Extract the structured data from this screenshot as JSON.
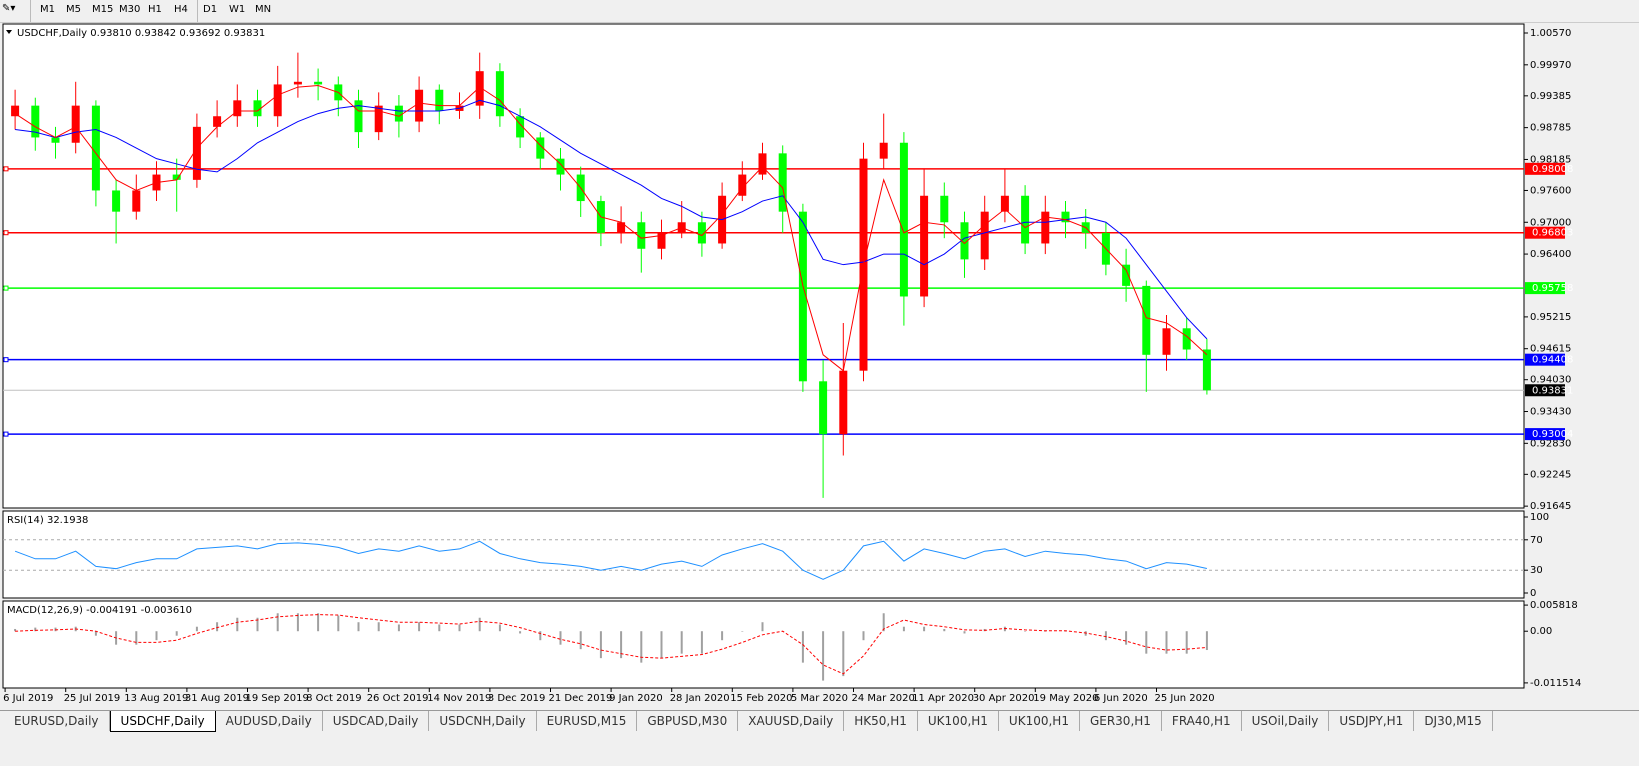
{
  "toolbar": {
    "timeframes": [
      "M1",
      "M5",
      "M15",
      "M30",
      "H1",
      "H4",
      "D1",
      "W1",
      "MN"
    ]
  },
  "tabs": [
    "EURUSD,Daily",
    "USDCHF,Daily",
    "AUDUSD,Daily",
    "USDCAD,Daily",
    "USDCNH,Daily",
    "EURUSD,M15",
    "GBPUSD,M30",
    "XAUUSD,Daily",
    "HK50,H1",
    "UK100,H1",
    "UK100,H1",
    "GER30,H1",
    "FRA40,H1",
    "USOil,Daily",
    "USDJPY,H1",
    "DJ30,M15"
  ],
  "active_tab": 1,
  "chart_data": [
    {
      "type": "candlestick",
      "title": "USDCHF,Daily  0.93810 0.93842 0.93692 0.93831",
      "up_color": "#ff0000",
      "down_color": "#00ff00",
      "categories": [
        "6 Jul 2019",
        null,
        null,
        "25 Jul 2019",
        null,
        null,
        "13 Aug 2019",
        null,
        null,
        "31 Aug 2019",
        null,
        null,
        "19 Sep 2019",
        null,
        null,
        "8 Oct 2019",
        null,
        null,
        "26 Oct 2019",
        null,
        null,
        "14 Nov 2019",
        null,
        null,
        "3 Dec 2019",
        null,
        null,
        "21 Dec 2019",
        null,
        null,
        "9 Jan 2020",
        null,
        null,
        "28 Jan 2020",
        null,
        null,
        "15 Feb 2020",
        null,
        null,
        "5 Mar 2020",
        null,
        null,
        "24 Mar 2020",
        null,
        null,
        "11 Apr 2020",
        null,
        null,
        "30 Apr 2020",
        null,
        null,
        "19 May 2020",
        null,
        null,
        "6 Jun 2020",
        null,
        null,
        "25 Jun 2020",
        null,
        null
      ],
      "open": [
        0.99,
        0.992,
        0.986,
        0.985,
        0.992,
        0.976,
        0.972,
        0.976,
        0.979,
        0.978,
        0.988,
        0.99,
        0.993,
        0.99,
        0.996,
        0.9965,
        0.996,
        0.993,
        0.987,
        0.992,
        0.989,
        0.995,
        0.991,
        0.992,
        0.9985,
        0.99,
        0.986,
        0.982,
        0.979,
        0.974,
        0.968,
        0.97,
        0.965,
        0.968,
        0.97,
        0.966,
        0.975,
        0.979,
        0.983,
        0.972,
        0.94,
        0.93,
        0.942,
        0.982,
        0.985,
        0.956,
        0.975,
        0.97,
        0.963,
        0.972,
        0.975,
        0.966,
        0.972,
        0.97,
        0.968,
        0.962,
        0.958,
        0.945,
        0.95,
        0.946
      ],
      "high": [
        0.995,
        0.9935,
        0.988,
        0.9965,
        0.993,
        0.978,
        0.979,
        0.9815,
        0.982,
        0.9905,
        0.993,
        0.996,
        0.995,
        0.9995,
        1.002,
        0.999,
        0.9975,
        0.995,
        0.9945,
        0.994,
        0.9975,
        0.996,
        0.9945,
        1.002,
        1.0,
        0.9915,
        0.987,
        0.984,
        0.9805,
        0.975,
        0.973,
        0.972,
        0.9705,
        0.974,
        0.972,
        0.9775,
        0.9815,
        0.985,
        0.9845,
        0.9735,
        0.944,
        0.951,
        0.985,
        0.9905,
        0.987,
        0.98,
        0.9775,
        0.972,
        0.975,
        0.98,
        0.977,
        0.975,
        0.974,
        0.9725,
        0.97,
        0.965,
        0.959,
        0.9525,
        0.952,
        0.948
      ],
      "low": [
        0.9875,
        0.9835,
        0.982,
        0.983,
        0.973,
        0.966,
        0.9705,
        0.974,
        0.972,
        0.9765,
        0.986,
        0.988,
        0.988,
        0.988,
        0.9935,
        0.993,
        0.99,
        0.984,
        0.9855,
        0.986,
        0.987,
        0.9885,
        0.9895,
        0.9895,
        0.988,
        0.984,
        0.98,
        0.976,
        0.971,
        0.9655,
        0.966,
        0.9605,
        0.963,
        0.967,
        0.9635,
        0.965,
        0.974,
        0.978,
        0.968,
        0.938,
        0.918,
        0.926,
        0.94,
        0.98,
        0.9505,
        0.954,
        0.967,
        0.9595,
        0.961,
        0.97,
        0.964,
        0.964,
        0.967,
        0.965,
        0.96,
        0.955,
        0.938,
        0.942,
        0.944,
        0.9375
      ],
      "close": [
        0.992,
        0.986,
        0.985,
        0.992,
        0.976,
        0.972,
        0.976,
        0.979,
        0.978,
        0.988,
        0.99,
        0.993,
        0.99,
        0.996,
        0.9965,
        0.996,
        0.993,
        0.987,
        0.992,
        0.989,
        0.995,
        0.991,
        0.992,
        0.9985,
        0.99,
        0.986,
        0.982,
        0.979,
        0.974,
        0.968,
        0.97,
        0.965,
        0.968,
        0.97,
        0.966,
        0.975,
        0.979,
        0.983,
        0.972,
        0.94,
        0.93,
        0.942,
        0.982,
        0.985,
        0.956,
        0.975,
        0.97,
        0.963,
        0.972,
        0.975,
        0.966,
        0.972,
        0.97,
        0.968,
        0.962,
        0.958,
        0.945,
        0.95,
        0.946,
        0.93831
      ],
      "series": [
        {
          "color": "#0000ff",
          "values": [
            0.9875,
            0.987,
            0.986,
            0.987,
            0.9875,
            0.986,
            0.984,
            0.982,
            0.981,
            0.98,
            0.9795,
            0.982,
            0.985,
            0.987,
            0.989,
            0.9905,
            0.9915,
            0.992,
            0.9915,
            0.991,
            0.991,
            0.991,
            0.9915,
            0.993,
            0.992,
            0.99,
            0.988,
            0.9855,
            0.983,
            0.981,
            0.979,
            0.977,
            0.9745,
            0.973,
            0.971,
            0.9705,
            0.972,
            0.974,
            0.975,
            0.97,
            0.963,
            0.962,
            0.9625,
            0.964,
            0.964,
            0.962,
            0.964,
            0.967,
            0.968,
            0.969,
            0.97,
            0.97,
            0.9705,
            0.971,
            0.97,
            0.967,
            0.962,
            0.957,
            0.952,
            0.948
          ]
        },
        {
          "color": "#ff0000",
          "values": [
            0.9905,
            0.988,
            0.986,
            0.988,
            0.983,
            0.978,
            0.976,
            0.9775,
            0.978,
            0.984,
            0.988,
            0.991,
            0.991,
            0.994,
            0.9955,
            0.9958,
            0.9945,
            0.991,
            0.991,
            0.99,
            0.9925,
            0.992,
            0.992,
            0.9955,
            0.993,
            0.9885,
            0.9845,
            0.981,
            0.9765,
            0.971,
            0.97,
            0.967,
            0.9675,
            0.969,
            0.9675,
            0.9715,
            0.9765,
            0.9805,
            0.9765,
            0.958,
            0.945,
            0.942,
            0.962,
            0.978,
            0.968,
            0.97,
            0.9695,
            0.966,
            0.9695,
            0.9725,
            0.969,
            0.971,
            0.9705,
            0.969,
            0.965,
            0.961,
            0.952,
            0.951,
            0.9485,
            0.945
          ]
        }
      ],
      "ylim": [
        0.9161,
        1.0074
      ],
      "yticks": [
        {
          "value": 1.0057,
          "label": "1.00570"
        },
        {
          "value": 0.9997,
          "label": "0.99970"
        },
        0.99385,
        0.98785,
        0.98185,
        {
          "value": 0.976,
          "label": "0.97600"
        },
        {
          "value": 0.97,
          "label": "0.97000"
        },
        {
          "value": 0.964,
          "label": "0.96400"
        },
        0.95215,
        0.94615,
        {
          "value": 0.9403,
          "label": "0.94030"
        },
        {
          "value": 0.9343,
          "label": "0.93430"
        },
        {
          "value": 0.9283,
          "label": "0.92830"
        },
        0.92245,
        0.91645
      ],
      "levels": [
        {
          "value": 0.98008,
          "color": "#ff0000"
        },
        {
          "value": 0.96803,
          "color": "#ff0000"
        },
        {
          "value": 0.95758,
          "color": "#00ff00"
        },
        {
          "value": 0.94408,
          "color": "#0000ff"
        },
        {
          "value": 0.93004,
          "color": "#0000ff"
        }
      ],
      "current": 0.93831
    },
    {
      "type": "line",
      "title": "RSI(14) 32.1938",
      "color": "#1e90ff",
      "values": [
        55,
        45,
        45,
        55,
        35,
        32,
        40,
        45,
        45,
        58,
        60,
        62,
        58,
        65,
        66,
        64,
        60,
        52,
        58,
        55,
        62,
        55,
        58,
        68,
        52,
        45,
        40,
        38,
        35,
        30,
        35,
        30,
        38,
        42,
        35,
        50,
        58,
        65,
        55,
        30,
        18,
        30,
        62,
        68,
        42,
        58,
        52,
        45,
        55,
        58,
        48,
        55,
        52,
        50,
        45,
        42,
        32,
        40,
        38,
        32.1938
      ],
      "ylim": [
        0,
        100
      ],
      "yticks": [
        100,
        70,
        30,
        0
      ],
      "levels": [
        70,
        30
      ]
    },
    {
      "type": "macd",
      "title": "MACD(12,26,9) -0.004191 -0.003610",
      "histogram": {
        "color": "#a0a0a0",
        "values": [
          0.0005,
          0.0008,
          0.0008,
          0.001,
          -0.001,
          -0.003,
          -0.003,
          -0.002,
          -0.001,
          0.001,
          0.002,
          0.003,
          0.003,
          0.004,
          0.004,
          0.004,
          0.0035,
          0.002,
          0.002,
          0.0015,
          0.002,
          0.0015,
          0.0015,
          0.003,
          0.0015,
          -0.0005,
          -0.002,
          -0.003,
          -0.004,
          -0.006,
          -0.006,
          -0.007,
          -0.006,
          -0.005,
          -0.005,
          -0.002,
          0,
          0.002,
          0,
          -0.007,
          -0.011,
          -0.01,
          -0.002,
          0.004,
          0.001,
          0.001,
          0.0005,
          -0.0005,
          0.0005,
          0.001,
          0,
          0,
          0,
          -0.001,
          -0.002,
          -0.003,
          -0.005,
          -0.005,
          -0.005,
          -0.004191
        ]
      },
      "signal": {
        "color": "#ff0000",
        "values": [
          0,
          0.0002,
          0.0003,
          0.0005,
          0,
          -0.0015,
          -0.0025,
          -0.0025,
          -0.002,
          -0.0005,
          0.0008,
          0.002,
          0.0025,
          0.0032,
          0.0035,
          0.0037,
          0.0036,
          0.003,
          0.0025,
          0.002,
          0.002,
          0.0018,
          0.0016,
          0.0022,
          0.0018,
          0.0008,
          -0.0005,
          -0.0018,
          -0.0028,
          -0.0042,
          -0.005,
          -0.0058,
          -0.006,
          -0.0056,
          -0.0052,
          -0.004,
          -0.0025,
          -0.0008,
          0,
          -0.003,
          -0.0075,
          -0.0095,
          -0.0055,
          0.0005,
          0.0025,
          0.0015,
          0.001,
          0.0003,
          0.0002,
          0.0006,
          0.0003,
          0.0001,
          0.0001,
          -0.0004,
          -0.0012,
          -0.0022,
          -0.0035,
          -0.0042,
          -0.004,
          -0.00361
        ]
      },
      "ylim": [
        -0.01265,
        0.00673
      ],
      "yticks": [
        0.005818,
        {
          "value": 0,
          "label": "0.00"
        },
        -0.011514
      ]
    }
  ]
}
